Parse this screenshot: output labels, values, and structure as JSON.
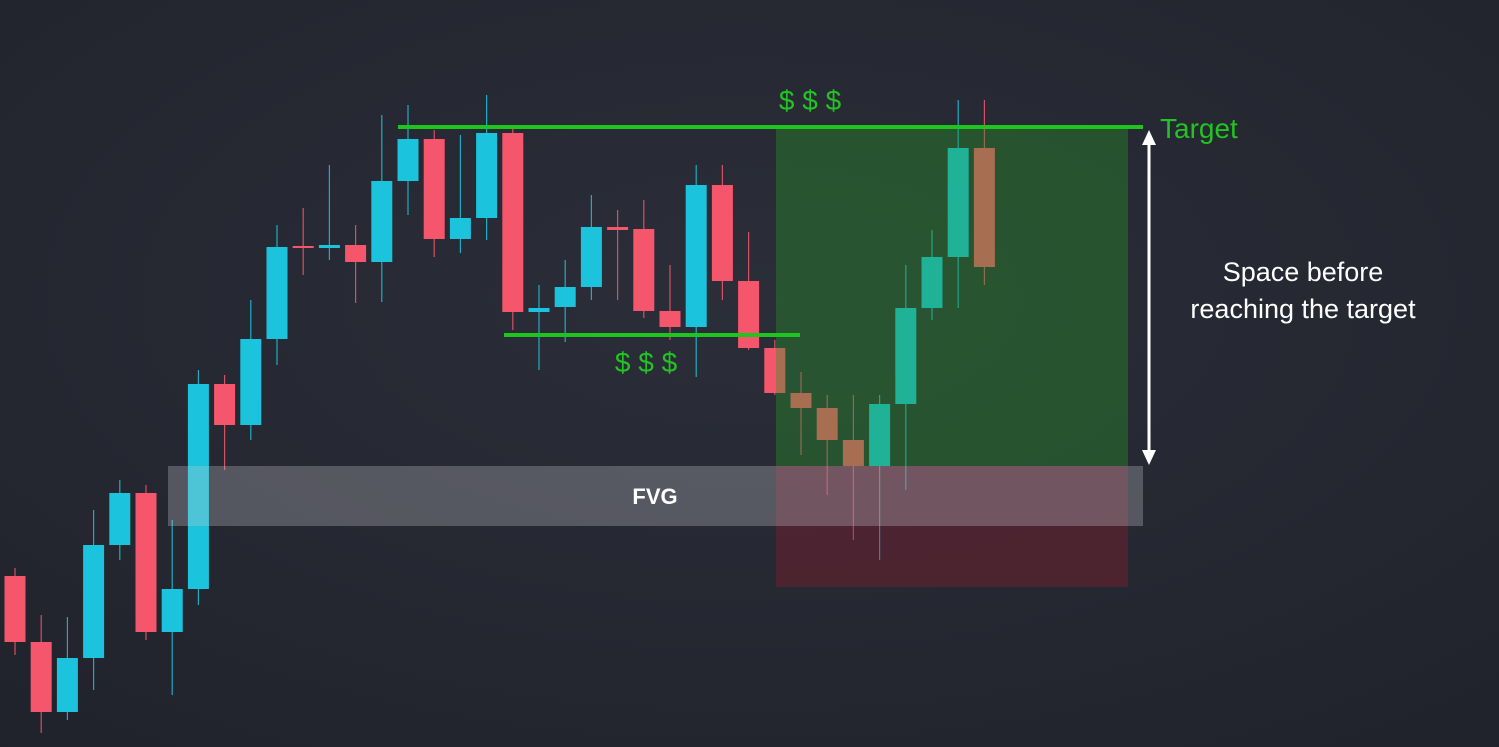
{
  "chart_data": {
    "type": "candlestick",
    "top_annotation": "$ $ $",
    "bottom_annotation": "$ $ $",
    "target_label": "Target",
    "space_note": [
      "Space before",
      "reaching the target"
    ],
    "zone_label": "FVG",
    "up_color": "#1bc4dc",
    "down_color": "#f5566b",
    "ylim": [
      0,
      747
    ],
    "open": [
      171,
      105,
      35,
      89,
      202,
      254,
      115,
      158,
      363,
      322,
      408,
      501,
      499,
      502,
      485,
      566,
      608,
      508,
      529,
      614,
      435,
      440,
      460,
      520,
      518,
      436,
      420,
      562,
      466,
      399,
      354,
      339,
      307,
      281,
      343,
      439,
      490,
      599
    ],
    "high": [
      179,
      132,
      130,
      237,
      267,
      262,
      227,
      377,
      372,
      447,
      522,
      539,
      582,
      522,
      632,
      642,
      617,
      612,
      652,
      622,
      462,
      487,
      552,
      537,
      547,
      482,
      582,
      582,
      515,
      407,
      375,
      352,
      352,
      352,
      482,
      517,
      647,
      647
    ],
    "low": [
      92,
      14,
      27,
      57,
      187,
      107,
      52,
      142,
      277,
      307,
      382,
      472,
      487,
      444,
      445,
      532,
      490,
      494,
      507,
      417,
      377,
      405,
      447,
      447,
      429,
      407,
      370,
      447,
      397,
      352,
      292,
      252,
      207,
      187,
      257,
      427,
      439,
      462
    ],
    "close": [
      105,
      35,
      89,
      202,
      254,
      115,
      158,
      363,
      322,
      408,
      500,
      499,
      502,
      485,
      566,
      608,
      508,
      529,
      614,
      435,
      439,
      460,
      520,
      517,
      436,
      420,
      562,
      466,
      399,
      354,
      339,
      307,
      281,
      343,
      439,
      490,
      599,
      480
    ]
  }
}
